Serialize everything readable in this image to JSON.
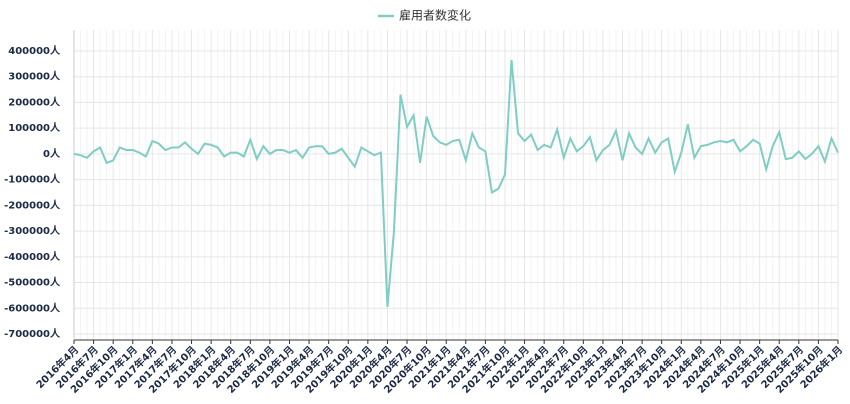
{
  "chart_data": {
    "type": "line",
    "categories": [
      "2016年4月",
      null,
      null,
      "2016年7月",
      null,
      null,
      "2016年10月",
      null,
      null,
      "2017年1月",
      null,
      null,
      "2017年4月",
      null,
      null,
      "2017年7月",
      null,
      null,
      "2017年10月",
      null,
      null,
      "2018年1月",
      null,
      null,
      "2018年4月",
      null,
      null,
      "2018年7月",
      null,
      null,
      "2018年10月",
      null,
      null,
      "2019年1月",
      null,
      null,
      "2019年4月",
      null,
      null,
      "2019年7月",
      null,
      null,
      "2019年10月",
      null,
      null,
      "2020年1月",
      null,
      null,
      "2020年4月",
      null,
      null,
      "2020年7月",
      null,
      null,
      "2020年10月",
      null,
      null,
      "2021年1月",
      null,
      null,
      "2021年4月",
      null,
      null,
      "2021年7月",
      null,
      null,
      "2021年10月",
      null,
      null,
      "2022年1月",
      null,
      null,
      "2022年4月",
      null,
      null,
      "2022年7月",
      null,
      null,
      "2022年10月",
      null,
      null,
      "2023年1月",
      null,
      null,
      "2023年4月",
      null,
      null,
      "2023年7月",
      null,
      null,
      "2023年10月",
      null,
      null,
      "2024年1月",
      null,
      null,
      "2024年4月",
      null,
      null,
      "2024年7月",
      null,
      null,
      "2024年10月",
      null,
      null,
      "2025年1月",
      null,
      null,
      "2025年4月",
      null,
      null,
      "2025年7月",
      null,
      null,
      "2025年10月",
      null,
      null,
      "2026年1月"
    ],
    "series": [
      {
        "name": "雇用者数変化",
        "color": "#7fcdc5",
        "values": [
          0,
          -5000,
          -15000,
          10000,
          25000,
          -35000,
          -25000,
          25000,
          15000,
          15000,
          5000,
          -10000,
          50000,
          40000,
          15000,
          25000,
          25000,
          45000,
          20000,
          0,
          40000,
          35000,
          25000,
          -10000,
          5000,
          5000,
          -10000,
          55000,
          -20000,
          30000,
          0,
          15000,
          15000,
          5000,
          15000,
          -15000,
          25000,
          30000,
          30000,
          0,
          5000,
          20000,
          -15000,
          -50000,
          25000,
          10000,
          -5000,
          5000,
          -595000,
          -300000,
          230000,
          105000,
          150000,
          -35000,
          145000,
          70000,
          45000,
          35000,
          50000,
          55000,
          -25000,
          80000,
          25000,
          10000,
          -150000,
          -135000,
          -80000,
          365000,
          80000,
          50000,
          75000,
          15000,
          35000,
          25000,
          95000,
          -15000,
          60000,
          10000,
          30000,
          65000,
          -25000,
          15000,
          35000,
          90000,
          -25000,
          80000,
          25000,
          0,
          60000,
          5000,
          45000,
          60000,
          -70000,
          5000,
          115000,
          -15000,
          30000,
          35000,
          45000,
          50000,
          45000,
          55000,
          10000,
          30000,
          55000,
          40000,
          -60000,
          30000,
          85000,
          -20000,
          -15000,
          10000,
          -20000,
          0,
          30000,
          -30000,
          60000,
          5000
        ]
      }
    ],
    "ylim": [
      -700000,
      400000
    ],
    "yticks": [
      {
        "value": -700000,
        "label": "-700000人"
      },
      {
        "value": -600000,
        "label": "-600000人"
      },
      {
        "value": -500000,
        "label": "-500000人"
      },
      {
        "value": -400000,
        "label": "-400000人"
      },
      {
        "value": -300000,
        "label": "-300000人"
      },
      {
        "value": -200000,
        "label": "-200000人"
      },
      {
        "value": -100000,
        "label": "-100000人"
      },
      {
        "value": 0,
        "label": "0人"
      },
      {
        "value": 100000,
        "label": "100000人"
      },
      {
        "value": 200000,
        "label": "200000人"
      },
      {
        "value": 300000,
        "label": "300000人"
      },
      {
        "value": 400000,
        "label": "400000人"
      }
    ],
    "grid": true
  }
}
